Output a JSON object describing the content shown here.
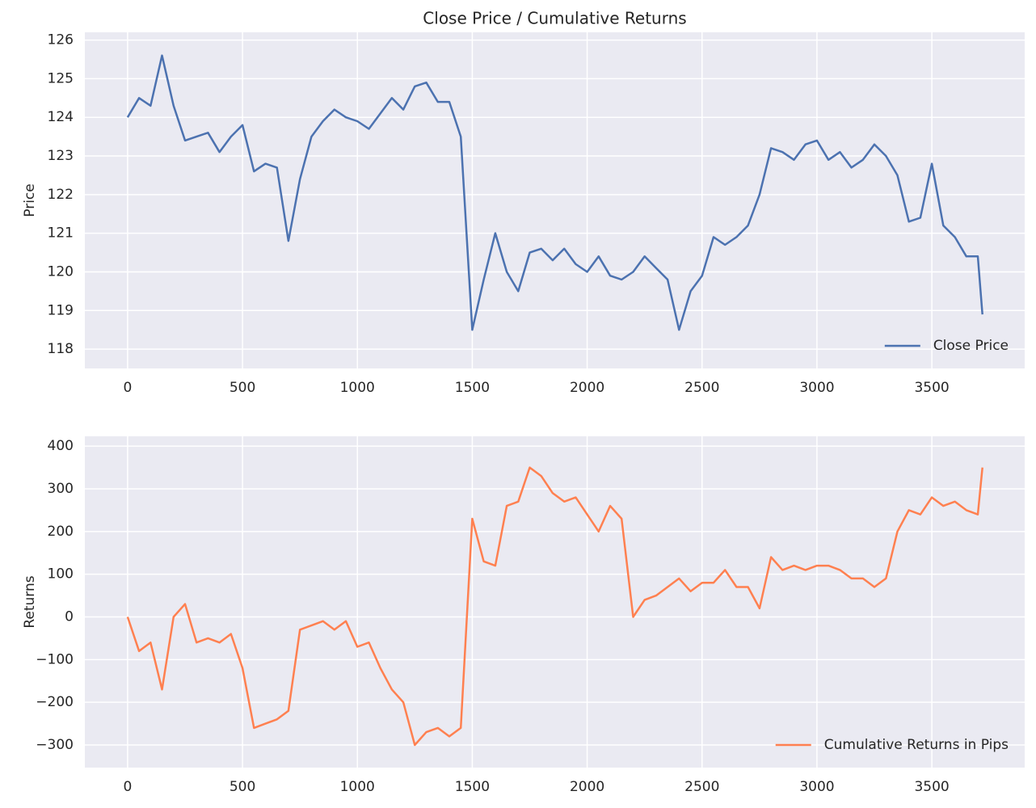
{
  "chart_data": [
    {
      "type": "line",
      "title": "Close Price / Cumulative Returns",
      "ylabel": "Price",
      "x": [
        0,
        50,
        100,
        150,
        200,
        250,
        300,
        350,
        400,
        450,
        500,
        550,
        600,
        650,
        700,
        750,
        800,
        850,
        900,
        950,
        1000,
        1050,
        1100,
        1150,
        1200,
        1250,
        1300,
        1350,
        1400,
        1450,
        1500,
        1550,
        1600,
        1650,
        1700,
        1750,
        1800,
        1850,
        1900,
        1950,
        2000,
        2050,
        2100,
        2150,
        2200,
        2250,
        2300,
        2350,
        2400,
        2450,
        2500,
        2550,
        2600,
        2650,
        2700,
        2750,
        2800,
        2850,
        2900,
        2950,
        3000,
        3050,
        3100,
        3150,
        3200,
        3250,
        3300,
        3350,
        3400,
        3450,
        3500,
        3550,
        3600,
        3650,
        3700,
        3720
      ],
      "series": [
        {
          "name": "Close Price",
          "color": "#4c72b0",
          "values": [
            124.0,
            124.5,
            124.3,
            125.6,
            124.3,
            123.4,
            123.5,
            123.6,
            123.1,
            123.5,
            123.8,
            122.6,
            122.8,
            122.7,
            120.8,
            122.4,
            123.5,
            123.9,
            124.2,
            124.0,
            123.9,
            123.7,
            124.1,
            124.5,
            124.2,
            124.8,
            124.9,
            124.4,
            124.4,
            123.5,
            118.5,
            119.8,
            121.0,
            120.0,
            119.5,
            120.5,
            120.6,
            120.3,
            120.6,
            120.2,
            120.0,
            120.4,
            119.9,
            119.8,
            120.0,
            120.4,
            120.1,
            119.8,
            118.5,
            119.5,
            119.9,
            120.9,
            120.7,
            120.9,
            121.2,
            122.0,
            123.2,
            123.1,
            122.9,
            123.3,
            123.4,
            122.9,
            123.1,
            122.7,
            122.9,
            123.3,
            123.0,
            122.5,
            121.3,
            121.4,
            122.8,
            121.2,
            120.9,
            120.4,
            120.4,
            118.9
          ]
        }
      ],
      "xlim": [
        -186,
        3904
      ],
      "ylim": [
        117.5,
        126.2
      ],
      "xticks": [
        0,
        500,
        1000,
        1500,
        2000,
        2500,
        3000,
        3500
      ],
      "yticks": [
        118,
        119,
        120,
        121,
        122,
        123,
        124,
        125,
        126
      ],
      "grid": true,
      "legend": "lower right"
    },
    {
      "type": "line",
      "ylabel": "Returns",
      "x": [
        0,
        50,
        100,
        150,
        200,
        250,
        300,
        350,
        400,
        450,
        500,
        550,
        600,
        650,
        700,
        750,
        800,
        850,
        900,
        950,
        1000,
        1050,
        1100,
        1150,
        1200,
        1250,
        1300,
        1350,
        1400,
        1450,
        1500,
        1550,
        1600,
        1650,
        1700,
        1750,
        1800,
        1850,
        1900,
        1950,
        2000,
        2050,
        2100,
        2150,
        2200,
        2250,
        2300,
        2350,
        2400,
        2450,
        2500,
        2550,
        2600,
        2650,
        2700,
        2750,
        2800,
        2850,
        2900,
        2950,
        3000,
        3050,
        3100,
        3150,
        3200,
        3250,
        3300,
        3350,
        3400,
        3450,
        3500,
        3550,
        3600,
        3650,
        3700,
        3720
      ],
      "series": [
        {
          "name": "Cumulative Returns in Pips",
          "color": "#ff8050",
          "values": [
            0,
            -80,
            -60,
            -170,
            0,
            30,
            -60,
            -50,
            -60,
            -40,
            -120,
            -260,
            -250,
            -240,
            -220,
            -30,
            -20,
            -10,
            -30,
            -10,
            -70,
            -60,
            -120,
            -170,
            -200,
            -300,
            -270,
            -260,
            -280,
            -260,
            230,
            130,
            120,
            260,
            270,
            350,
            330,
            290,
            270,
            280,
            240,
            200,
            260,
            230,
            0,
            40,
            50,
            70,
            90,
            60,
            80,
            80,
            110,
            70,
            70,
            20,
            140,
            110,
            120,
            110,
            120,
            120,
            110,
            90,
            90,
            70,
            90,
            200,
            250,
            240,
            280,
            260,
            270,
            250,
            240,
            350
          ]
        }
      ],
      "xlim": [
        -186,
        3904
      ],
      "ylim": [
        -353,
        423
      ],
      "xticks": [
        0,
        500,
        1000,
        1500,
        2000,
        2500,
        3000,
        3500
      ],
      "yticks": [
        {
          "value": -300,
          "label": "−300"
        },
        {
          "value": -200,
          "label": "−200"
        },
        {
          "value": -100,
          "label": "−100"
        },
        0,
        100,
        200,
        300,
        400
      ],
      "grid": true,
      "legend": "lower right"
    }
  ]
}
